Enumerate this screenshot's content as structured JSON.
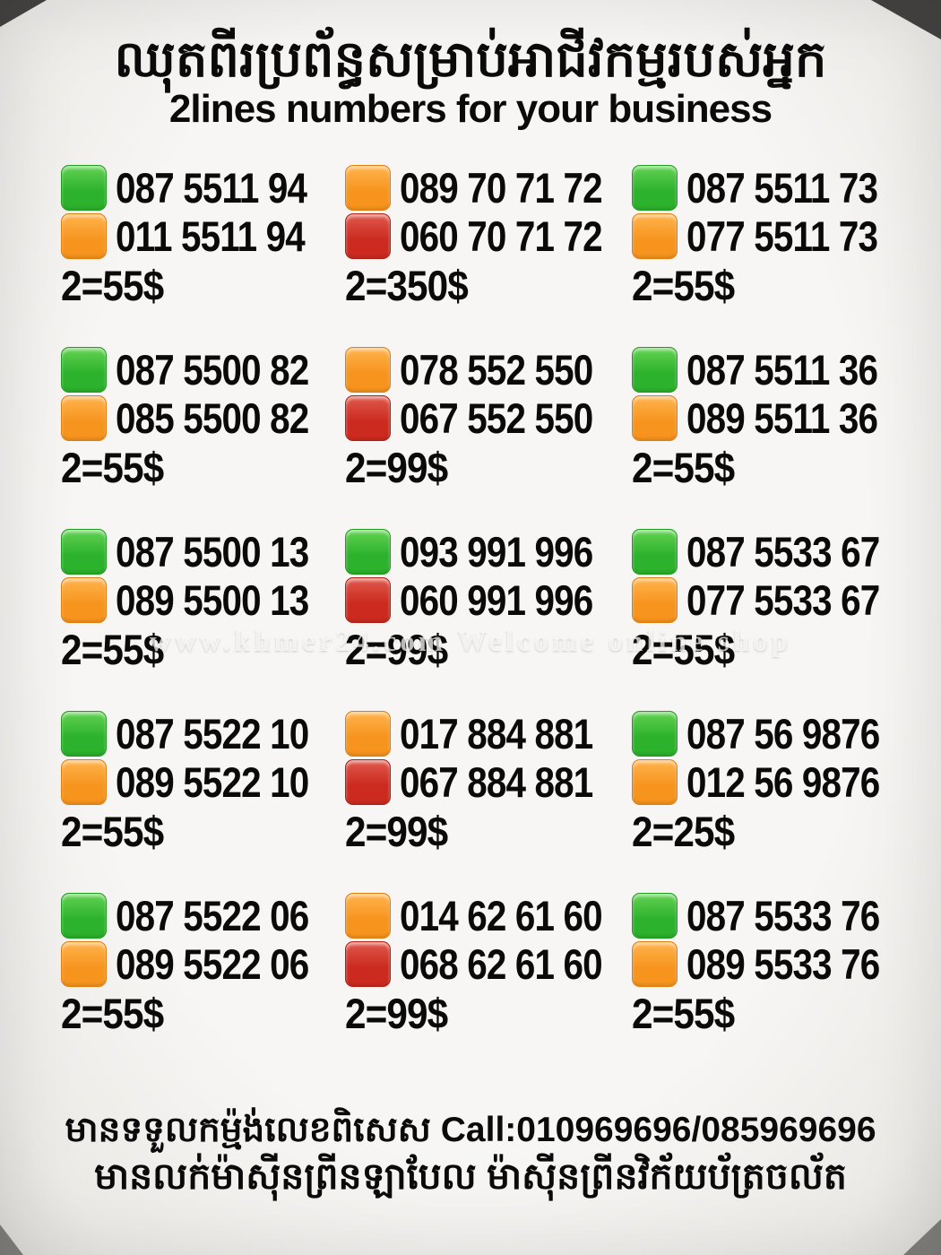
{
  "header": {
    "title_khmer": "ឈុតពីរប្រព័ន្ធសម្រាប់អាជីវកម្មរបស់អ្នក",
    "subtitle_english": "2lines numbers for your business"
  },
  "colors": {
    "green": {
      "top": "#63d253",
      "base": "#2cb22c",
      "border": "#219c21"
    },
    "orange": {
      "top": "#ffb44e",
      "base": "#f7941e",
      "border": "#e07f10"
    },
    "red": {
      "top": "#e0594d",
      "base": "#cc2a1e",
      "border": "#ad2217"
    }
  },
  "watermark": "www.khmer24.com Welcome online shop",
  "listings": [
    {
      "lines": [
        {
          "color": "green",
          "number": "087 5511 94"
        },
        {
          "color": "orange",
          "number": "011 5511 94"
        }
      ],
      "price": "2=55$"
    },
    {
      "lines": [
        {
          "color": "orange",
          "number": "089 70 71 72"
        },
        {
          "color": "red",
          "number": "060 70 71 72"
        }
      ],
      "price": "2=350$"
    },
    {
      "lines": [
        {
          "color": "green",
          "number": "087 5511 73"
        },
        {
          "color": "orange",
          "number": "077 5511 73"
        }
      ],
      "price": "2=55$"
    },
    {
      "lines": [
        {
          "color": "green",
          "number": "087 5500 82"
        },
        {
          "color": "orange",
          "number": "085 5500 82"
        }
      ],
      "price": "2=55$"
    },
    {
      "lines": [
        {
          "color": "orange",
          "number": "078 552 550"
        },
        {
          "color": "red",
          "number": "067 552 550"
        }
      ],
      "price": "2=99$"
    },
    {
      "lines": [
        {
          "color": "green",
          "number": "087 5511 36"
        },
        {
          "color": "orange",
          "number": "089 5511 36"
        }
      ],
      "price": "2=55$"
    },
    {
      "lines": [
        {
          "color": "green",
          "number": "087 5500 13"
        },
        {
          "color": "orange",
          "number": "089 5500 13"
        }
      ],
      "price": "2=55$"
    },
    {
      "lines": [
        {
          "color": "green",
          "number": "093 991 996"
        },
        {
          "color": "red",
          "number": "060 991 996"
        }
      ],
      "price": "2=99$"
    },
    {
      "lines": [
        {
          "color": "green",
          "number": "087 5533 67"
        },
        {
          "color": "orange",
          "number": "077 5533 67"
        }
      ],
      "price": "2=55$"
    },
    {
      "lines": [
        {
          "color": "green",
          "number": "087 5522 10"
        },
        {
          "color": "orange",
          "number": "089 5522 10"
        }
      ],
      "price": "2=55$"
    },
    {
      "lines": [
        {
          "color": "orange",
          "number": "017 884 881"
        },
        {
          "color": "red",
          "number": "067 884 881"
        }
      ],
      "price": "2=99$"
    },
    {
      "lines": [
        {
          "color": "green",
          "number": "087 56 9876"
        },
        {
          "color": "orange",
          "number": "012 56 9876"
        }
      ],
      "price": "2=25$"
    },
    {
      "lines": [
        {
          "color": "green",
          "number": "087 5522 06"
        },
        {
          "color": "orange",
          "number": "089 5522 06"
        }
      ],
      "price": "2=55$"
    },
    {
      "lines": [
        {
          "color": "orange",
          "number": "014 62 61 60"
        },
        {
          "color": "red",
          "number": "068 62 61 60"
        }
      ],
      "price": "2=99$"
    },
    {
      "lines": [
        {
          "color": "green",
          "number": "087 5533 76"
        },
        {
          "color": "orange",
          "number": "089 5533 76"
        }
      ],
      "price": "2=55$"
    }
  ],
  "footer": {
    "line1_khmer": "មានទទួលកម្ម៉ង់លេខពិសេស",
    "line1_call": "Call:010969696/085969696",
    "line2_khmer": "មានលក់ម៉ាស៊ីនព្រីនឡាបែល ម៉ាស៊ីនព្រីនវិក័យប័ត្រចល័ត"
  }
}
